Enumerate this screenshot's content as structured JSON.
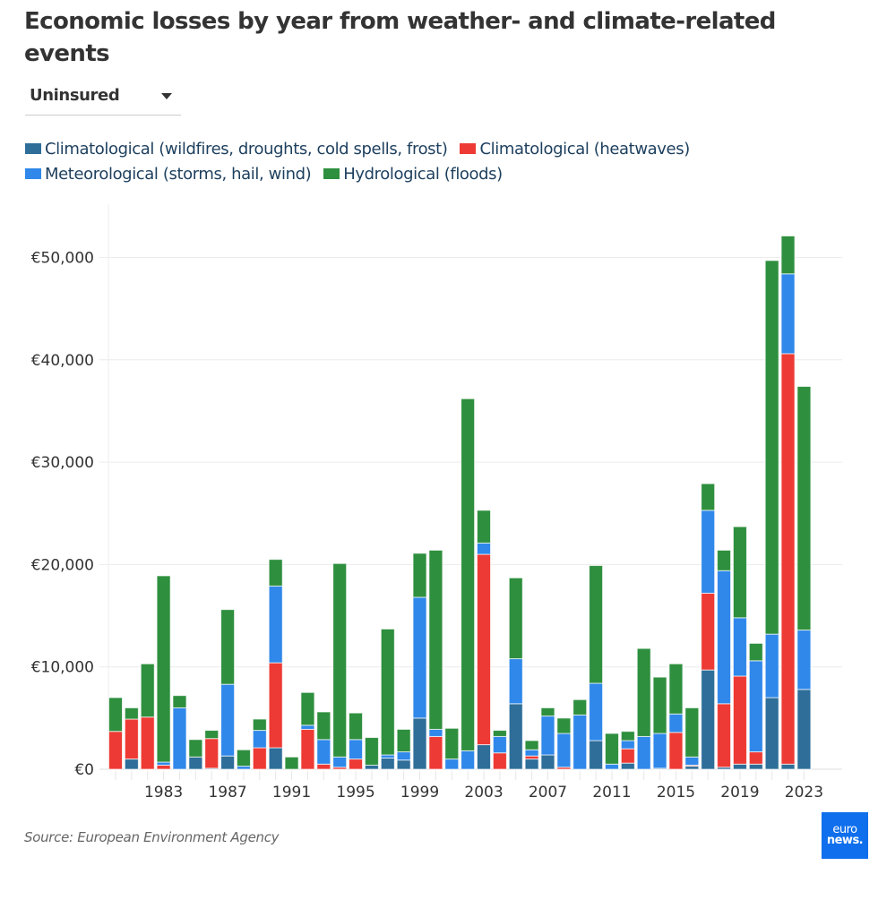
{
  "title": "Economic losses by year from weather- and climate-related events",
  "dropdown": {
    "selected": "Uninsured"
  },
  "legend": [
    {
      "label": "Climatological (wildfires, droughts, cold spells, frost)",
      "color": "#2e6e99"
    },
    {
      "label": "Climatological (heatwaves)",
      "color": "#ee3a34"
    },
    {
      "label": "Meteorological (storms, hail, wind)",
      "color": "#2f88ea"
    },
    {
      "label": "Hydrological (floods)",
      "color": "#2e8f3e"
    }
  ],
  "source": "Source: European Environment Agency",
  "logo": {
    "line1": "euro",
    "line2": "news."
  },
  "chart_data": {
    "type": "bar",
    "stacked": true,
    "title": "Economic losses by year from weather- and climate-related events",
    "xlabel": "",
    "ylabel": "",
    "ylim": [
      0,
      55000
    ],
    "yticks": [
      0,
      10000,
      20000,
      30000,
      40000,
      50000
    ],
    "ytick_labels": [
      "€0",
      "€10,000",
      "€20,000",
      "€30,000",
      "€40,000",
      "€50,000"
    ],
    "xtick_labels": [
      "1983",
      "1987",
      "1991",
      "1995",
      "1999",
      "2003",
      "2007",
      "2011",
      "2015",
      "2019",
      "2023"
    ],
    "grid": true,
    "legend_position": "top-left",
    "categories": [
      1980,
      1981,
      1982,
      1983,
      1984,
      1985,
      1986,
      1987,
      1988,
      1989,
      1990,
      1991,
      1992,
      1993,
      1994,
      1995,
      1996,
      1997,
      1998,
      1999,
      2000,
      2001,
      2002,
      2003,
      2004,
      2005,
      2006,
      2007,
      2008,
      2009,
      2010,
      2011,
      2012,
      2013,
      2014,
      2015,
      2016,
      2017,
      2018,
      2019,
      2020,
      2021,
      2022,
      2023
    ],
    "series": [
      {
        "name": "Climatological (wildfires, droughts, cold spells, frost)",
        "color": "#2e6e99",
        "values": [
          0,
          1000,
          0,
          0,
          0,
          1200,
          100,
          1300,
          0,
          0,
          2100,
          0,
          0,
          0,
          0,
          0,
          400,
          1100,
          900,
          5000,
          0,
          0,
          0,
          2400,
          0,
          6400,
          1000,
          1400,
          0,
          0,
          2800,
          0,
          600,
          0,
          100,
          0,
          300,
          9700,
          200,
          500,
          500,
          7000,
          500,
          7800
        ]
      },
      {
        "name": "Climatological (heatwaves)",
        "color": "#ee3a34",
        "values": [
          3700,
          3900,
          5100,
          400,
          0,
          0,
          2900,
          0,
          0,
          2100,
          8300,
          0,
          3900,
          500,
          200,
          1000,
          0,
          0,
          0,
          0,
          3200,
          0,
          0,
          18600,
          1600,
          0,
          300,
          0,
          200,
          0,
          0,
          0,
          1400,
          0,
          0,
          3600,
          100,
          7500,
          6200,
          8600,
          1200,
          0,
          40100,
          0
        ]
      },
      {
        "name": "Meteorological (storms, hail, wind)",
        "color": "#2f88ea",
        "values": [
          0,
          0,
          0,
          300,
          6000,
          0,
          0,
          7000,
          300,
          1700,
          7500,
          0,
          400,
          2400,
          1000,
          1900,
          0,
          300,
          800,
          11800,
          700,
          1000,
          1800,
          1100,
          1600,
          4400,
          600,
          3800,
          3300,
          5300,
          5600,
          500,
          800,
          3200,
          3400,
          1800,
          800,
          8100,
          13000,
          5700,
          8900,
          6200,
          7800,
          5800
        ]
      },
      {
        "name": "Hydrological (floods)",
        "color": "#2e8f3e",
        "values": [
          3300,
          1100,
          5200,
          18200,
          1200,
          1700,
          800,
          7300,
          1600,
          1100,
          2600,
          1200,
          3200,
          2700,
          18900,
          2600,
          2700,
          12300,
          2200,
          4300,
          17500,
          3000,
          34400,
          3200,
          600,
          7900,
          900,
          800,
          1500,
          1500,
          11500,
          3000,
          900,
          8600,
          5500,
          4900,
          4800,
          2600,
          2000,
          8900,
          1700,
          36500,
          3700,
          23800
        ]
      }
    ]
  }
}
